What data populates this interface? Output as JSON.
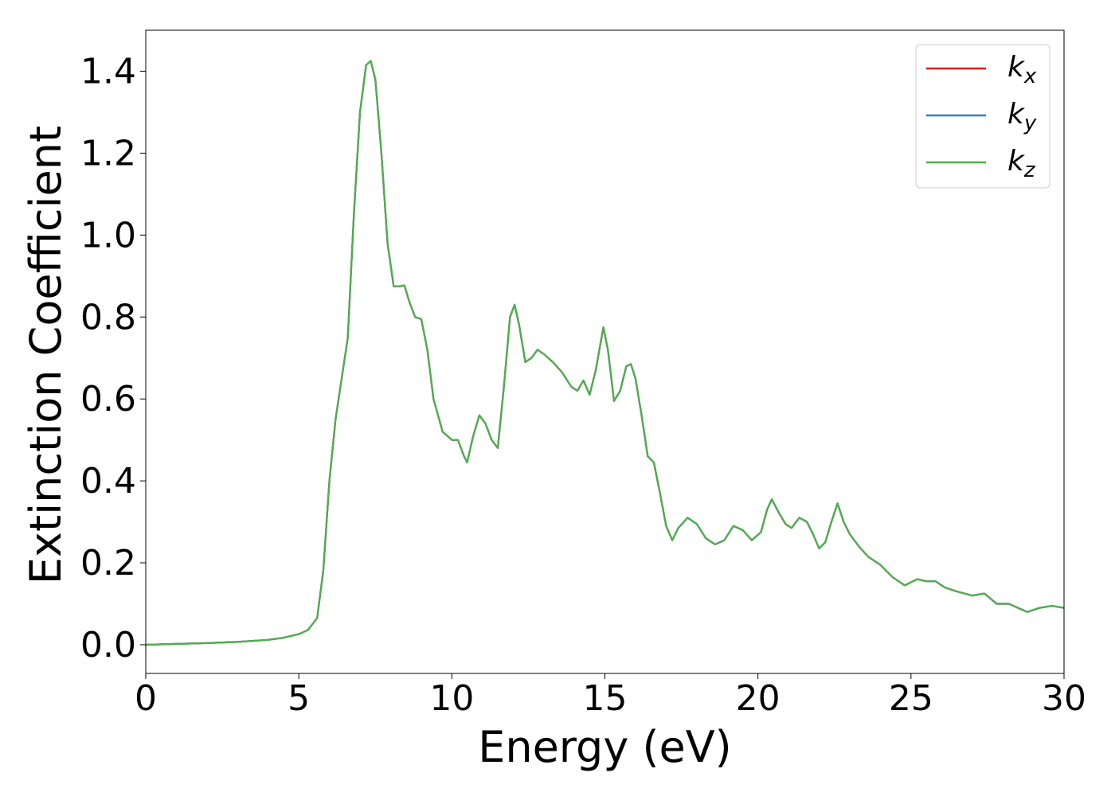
{
  "chart_data": {
    "type": "line",
    "title": "",
    "xlabel": "Energy (eV)",
    "ylabel": "Extinction Coefficient",
    "xlim": [
      0,
      30
    ],
    "ylim": [
      -0.07,
      1.5
    ],
    "xticks": [
      0,
      5,
      10,
      15,
      20,
      25,
      30
    ],
    "xtick_labels": [
      "0",
      "5",
      "10",
      "15",
      "20",
      "25",
      "30"
    ],
    "yticks": [
      0.0,
      0.2,
      0.4,
      0.6,
      0.8,
      1.0,
      1.2,
      1.4
    ],
    "ytick_labels": [
      "0.0",
      "0.2",
      "0.4",
      "0.6",
      "0.8",
      "1.0",
      "1.2",
      "1.4"
    ],
    "grid": false,
    "legend_position": "top-right",
    "series": [
      {
        "name": "k",
        "subscript": "x",
        "color": "#e41a1c"
      },
      {
        "name": "k",
        "subscript": "y",
        "color": "#377eb8"
      },
      {
        "name": "k",
        "subscript": "z",
        "color": "#4daf4a"
      }
    ],
    "x": [
      0,
      1,
      2,
      3,
      4,
      4.5,
      5,
      5.3,
      5.6,
      5.8,
      6.0,
      6.2,
      6.4,
      6.6,
      6.8,
      7.0,
      7.2,
      7.35,
      7.5,
      7.7,
      7.9,
      8.1,
      8.3,
      8.45,
      8.6,
      8.8,
      9.0,
      9.2,
      9.4,
      9.7,
      10.0,
      10.2,
      10.4,
      10.5,
      10.7,
      10.9,
      11.1,
      11.3,
      11.5,
      11.7,
      11.9,
      12.05,
      12.2,
      12.4,
      12.6,
      12.8,
      13.0,
      13.3,
      13.6,
      13.9,
      14.1,
      14.3,
      14.5,
      14.7,
      14.95,
      15.1,
      15.3,
      15.5,
      15.7,
      15.85,
      16.0,
      16.2,
      16.4,
      16.6,
      16.8,
      17.0,
      17.2,
      17.4,
      17.7,
      18.0,
      18.3,
      18.6,
      18.9,
      19.2,
      19.5,
      19.8,
      20.1,
      20.3,
      20.45,
      20.7,
      20.9,
      21.1,
      21.35,
      21.6,
      21.8,
      22.0,
      22.2,
      22.4,
      22.6,
      22.8,
      23.0,
      23.3,
      23.6,
      24.0,
      24.4,
      24.8,
      25.2,
      25.5,
      25.8,
      26.1,
      26.5,
      27.0,
      27.4,
      27.8,
      28.2,
      28.5,
      28.8,
      29.2,
      29.6,
      30.0
    ],
    "values": [
      0.0,
      0.002,
      0.004,
      0.007,
      0.012,
      0.017,
      0.026,
      0.036,
      0.065,
      0.18,
      0.4,
      0.55,
      0.65,
      0.75,
      1.05,
      1.3,
      1.415,
      1.425,
      1.38,
      1.2,
      0.98,
      0.875,
      0.875,
      0.877,
      0.84,
      0.8,
      0.795,
      0.72,
      0.6,
      0.52,
      0.5,
      0.5,
      0.46,
      0.445,
      0.51,
      0.56,
      0.54,
      0.5,
      0.48,
      0.63,
      0.8,
      0.83,
      0.78,
      0.69,
      0.7,
      0.72,
      0.71,
      0.69,
      0.665,
      0.63,
      0.62,
      0.645,
      0.61,
      0.67,
      0.775,
      0.72,
      0.595,
      0.62,
      0.68,
      0.685,
      0.65,
      0.56,
      0.46,
      0.445,
      0.37,
      0.29,
      0.255,
      0.285,
      0.31,
      0.295,
      0.26,
      0.245,
      0.255,
      0.29,
      0.28,
      0.255,
      0.275,
      0.33,
      0.355,
      0.32,
      0.295,
      0.285,
      0.31,
      0.3,
      0.27,
      0.235,
      0.25,
      0.3,
      0.345,
      0.3,
      0.27,
      0.24,
      0.215,
      0.195,
      0.165,
      0.145,
      0.16,
      0.155,
      0.155,
      0.14,
      0.13,
      0.12,
      0.125,
      0.1,
      0.1,
      0.09,
      0.08,
      0.09,
      0.095,
      0.09
    ]
  }
}
